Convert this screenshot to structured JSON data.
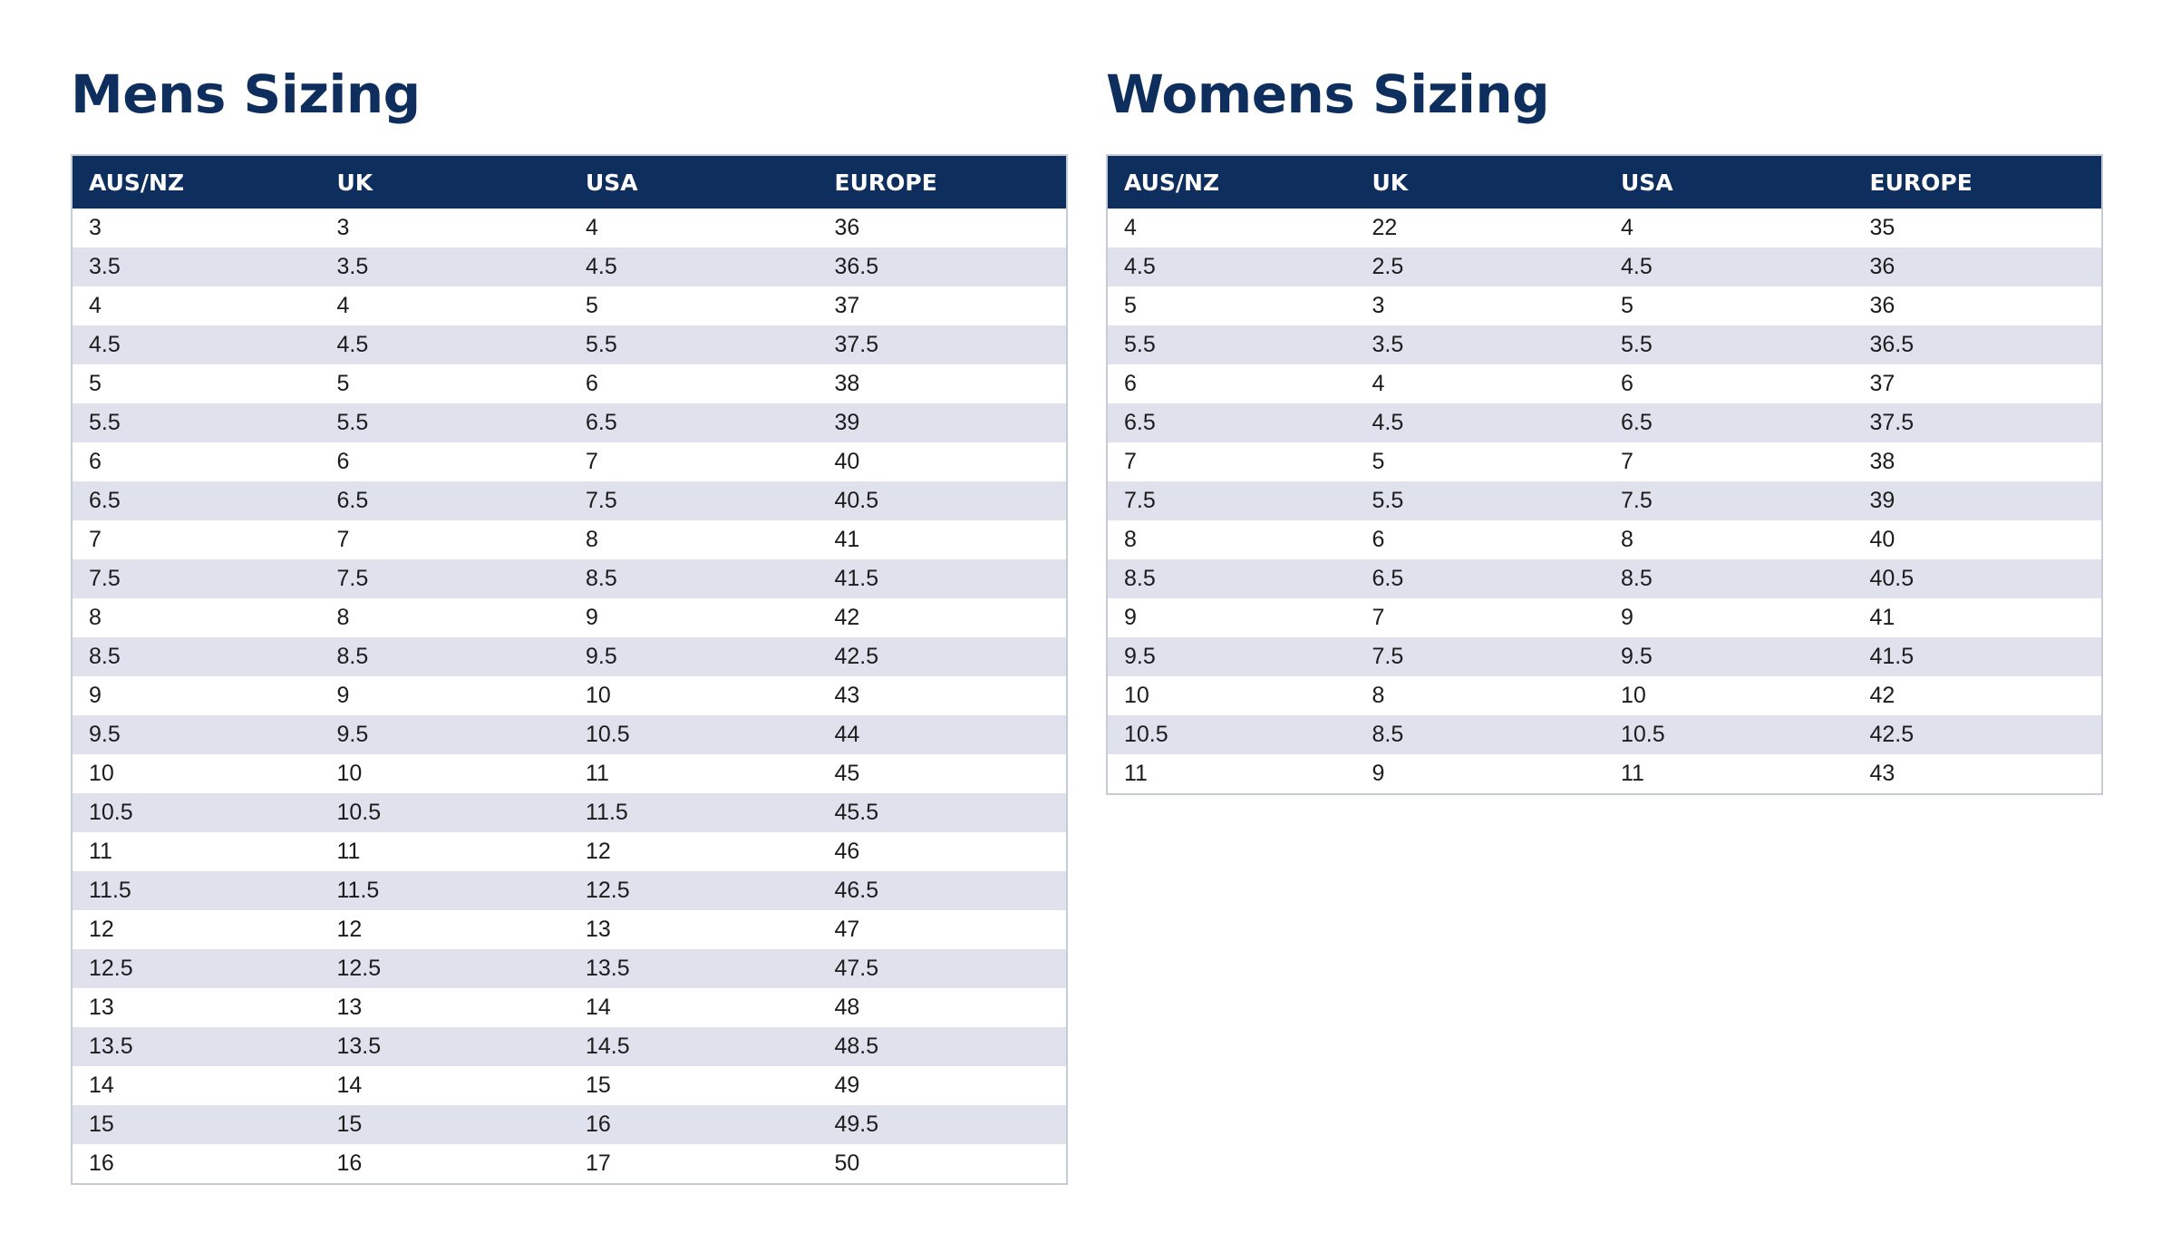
{
  "mens": {
    "title": "Mens Sizing",
    "headers": [
      "AUS/NZ",
      "UK",
      "USA",
      "EUROPE"
    ],
    "rows": [
      [
        "3",
        "3",
        "4",
        "36"
      ],
      [
        "3.5",
        "3.5",
        "4.5",
        "36.5"
      ],
      [
        "4",
        "4",
        "5",
        "37"
      ],
      [
        "4.5",
        "4.5",
        "5.5",
        "37.5"
      ],
      [
        "5",
        "5",
        "6",
        "38"
      ],
      [
        "5.5",
        "5.5",
        "6.5",
        "39"
      ],
      [
        "6",
        "6",
        "7",
        "40"
      ],
      [
        "6.5",
        "6.5",
        "7.5",
        "40.5"
      ],
      [
        "7",
        "7",
        "8",
        "41"
      ],
      [
        "7.5",
        "7.5",
        "8.5",
        "41.5"
      ],
      [
        "8",
        "8",
        "9",
        "42"
      ],
      [
        "8.5",
        "8.5",
        "9.5",
        "42.5"
      ],
      [
        "9",
        "9",
        "10",
        "43"
      ],
      [
        "9.5",
        "9.5",
        "10.5",
        "44"
      ],
      [
        "10",
        "10",
        "11",
        "45"
      ],
      [
        "10.5",
        "10.5",
        "11.5",
        "45.5"
      ],
      [
        "11",
        "11",
        "12",
        "46"
      ],
      [
        "11.5",
        "11.5",
        "12.5",
        "46.5"
      ],
      [
        "12",
        "12",
        "13",
        "47"
      ],
      [
        "12.5",
        "12.5",
        "13.5",
        "47.5"
      ],
      [
        "13",
        "13",
        "14",
        "48"
      ],
      [
        "13.5",
        "13.5",
        "14.5",
        "48.5"
      ],
      [
        "14",
        "14",
        "15",
        "49"
      ],
      [
        "15",
        "15",
        "16",
        "49.5"
      ],
      [
        "16",
        "16",
        "17",
        "50"
      ]
    ]
  },
  "womens": {
    "title": "Womens Sizing",
    "headers": [
      "AUS/NZ",
      "UK",
      "USA",
      "EUROPE"
    ],
    "rows": [
      [
        "4",
        "22",
        "4",
        "35"
      ],
      [
        "4.5",
        "2.5",
        "4.5",
        "36"
      ],
      [
        "5",
        "3",
        "5",
        "36"
      ],
      [
        "5.5",
        "3.5",
        "5.5",
        "36.5"
      ],
      [
        "6",
        "4",
        "6",
        "37"
      ],
      [
        "6.5",
        "4.5",
        "6.5",
        "37.5"
      ],
      [
        "7",
        "5",
        "7",
        "38"
      ],
      [
        "7.5",
        "5.5",
        "7.5",
        "39"
      ],
      [
        "8",
        "6",
        "8",
        "40"
      ],
      [
        "8.5",
        "6.5",
        "8.5",
        "40.5"
      ],
      [
        "9",
        "7",
        "9",
        "41"
      ],
      [
        "9.5",
        "7.5",
        "9.5",
        "41.5"
      ],
      [
        "10",
        "8",
        "10",
        "42"
      ],
      [
        "10.5",
        "8.5",
        "10.5",
        "42.5"
      ],
      [
        "11",
        "9",
        "11",
        "43"
      ]
    ]
  },
  "colors": {
    "header_bg": "#0e2f5e",
    "title_text": "#0e2f5e",
    "stripe_row": "#dfe2ed",
    "border": "#c7cbd6"
  }
}
